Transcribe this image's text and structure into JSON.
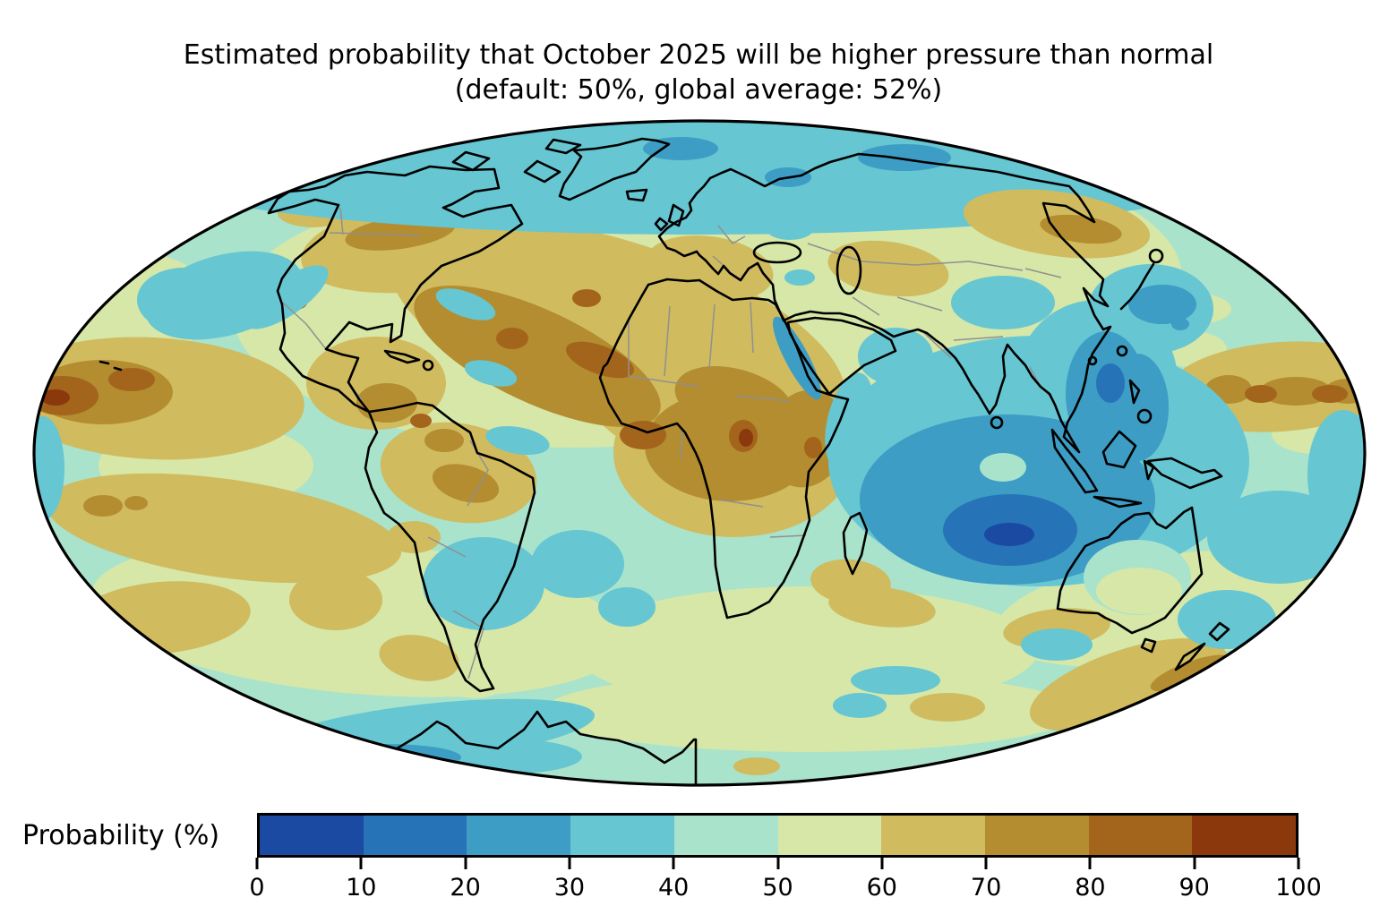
{
  "title": {
    "line1": "Estimated probability that October 2025 will be higher pressure than normal",
    "line2": "(default: 50%, global average: 52%)"
  },
  "colorbar": {
    "label": "Probability (%)",
    "orientation": "horizontal",
    "ticks": [
      "0",
      "10",
      "20",
      "30",
      "40",
      "50",
      "60",
      "70",
      "80",
      "90",
      "100"
    ],
    "bin_colors": [
      "#1b4aa2",
      "#2673b8",
      "#3d9dc4",
      "#66c6d2",
      "#a9e3cc",
      "#d6e7a8",
      "#d0bb5f",
      "#b38d30",
      "#a3651b",
      "#8b380d"
    ]
  },
  "map": {
    "projection": "Mollweide",
    "coastline_color": "#000000",
    "country_border_color": "#909090",
    "ocean_base_color": "#a9e3cc"
  },
  "chart_data": {
    "type": "heatmap",
    "title": "Estimated probability that October 2025 will be higher pressure than normal",
    "subtitle": "(default: 50%, global average: 52%)",
    "variable": "Probability (%)",
    "projection": "Mollweide",
    "default_probability_pct": 50,
    "global_average_pct": 52,
    "colorbar": {
      "bin_edges": [
        0,
        10,
        20,
        30,
        40,
        50,
        60,
        70,
        80,
        90,
        100
      ],
      "bin_colors": [
        "#1b4aa2",
        "#2673b8",
        "#3d9dc4",
        "#66c6d2",
        "#a9e3cc",
        "#d6e7a8",
        "#d0bb5f",
        "#b38d30",
        "#a3651b",
        "#8b380d"
      ],
      "legend_position": "bottom"
    },
    "notable_regions": [
      {
        "region": "Central/eastern Indian Ocean (west of Australia)",
        "approx_probability_pct": "5-20"
      },
      {
        "region": "Bay of Bengal, South China Sea and Maritime Continent",
        "approx_probability_pct": "20-40"
      },
      {
        "region": "Subtropical North Atlantic and adjacent North America",
        "approx_probability_pct": "60-85"
      },
      {
        "region": "Central Africa (Sahel to Congo/East Africa)",
        "approx_probability_pct": "70-95"
      },
      {
        "region": "Equatorial eastern Pacific near map edge",
        "approx_probability_pct": "70-95"
      },
      {
        "region": "North Pacific near the date line",
        "approx_probability_pct": "60-85"
      },
      {
        "region": "Arctic Ocean",
        "approx_probability_pct": "30-45"
      },
      {
        "region": "Sea near Japan and Philippine Sea",
        "approx_probability_pct": "20-40"
      },
      {
        "region": "Southwest Atlantic off Argentina",
        "approx_probability_pct": "30-40"
      },
      {
        "region": "South Indian Ocean southeast of Australia / New Zealand",
        "approx_probability_pct": "60-85"
      },
      {
        "region": "Southern Ocean / Antarctic coast (Ross sector)",
        "approx_probability_pct": "20-40"
      },
      {
        "region": "Most remaining oceans",
        "approx_probability_pct": "40-60"
      }
    ]
  }
}
